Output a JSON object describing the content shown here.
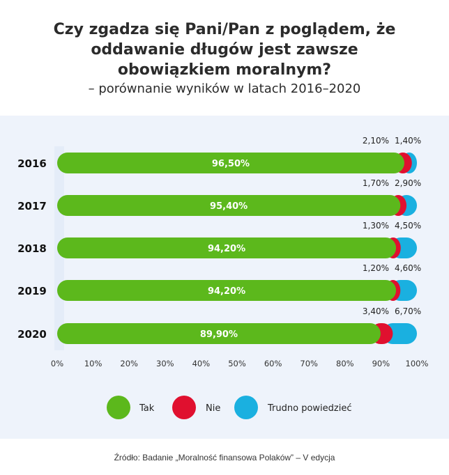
{
  "title_lines": [
    "Czy zgadza się Pani/Pan z poglądem, że",
    "oddawanie długów jest zawsze",
    "obowiązkiem moralnym?"
  ],
  "subtitle": "– porównanie wyników w latach 2016–2020",
  "footer": "Źródło: Badanie „Moralność finansowa Polaków” – V edycja",
  "colors": {
    "tak": "#5cb81c",
    "nie": "#e0102f",
    "trudno": "#1ab0e0",
    "panel": "#eef3fb"
  },
  "chart_data": {
    "type": "bar",
    "orientation": "horizontal",
    "stacked": true,
    "categories": [
      "2016",
      "2017",
      "2018",
      "2019",
      "2020"
    ],
    "series": [
      {
        "name": "Tak",
        "values": [
          96.5,
          95.4,
          94.2,
          94.2,
          89.9
        ],
        "labels": [
          "96,50%",
          "95,40%",
          "94,20%",
          "94,20%",
          "89,90%"
        ],
        "color": "#5cb81c"
      },
      {
        "name": "Nie",
        "values": [
          2.1,
          1.7,
          1.3,
          1.2,
          3.4
        ],
        "labels": [
          "2,10%",
          "1,70%",
          "1,30%",
          "1,20%",
          "3,40%"
        ],
        "color": "#e0102f"
      },
      {
        "name": "Trudno powiedzieć",
        "values": [
          1.4,
          2.9,
          4.5,
          4.6,
          6.7
        ],
        "labels": [
          "1,40%",
          "2,90%",
          "4,50%",
          "4,60%",
          "6,70%"
        ],
        "color": "#1ab0e0"
      }
    ],
    "xlim": [
      0,
      100
    ],
    "xticks": [
      "0%",
      "10%",
      "20%",
      "30%",
      "40%",
      "50%",
      "60%",
      "70%",
      "80%",
      "90%",
      "100%"
    ],
    "legend": [
      "Tak",
      "Nie",
      "Trudno powiedzieć"
    ],
    "legend_position": "bottom"
  }
}
